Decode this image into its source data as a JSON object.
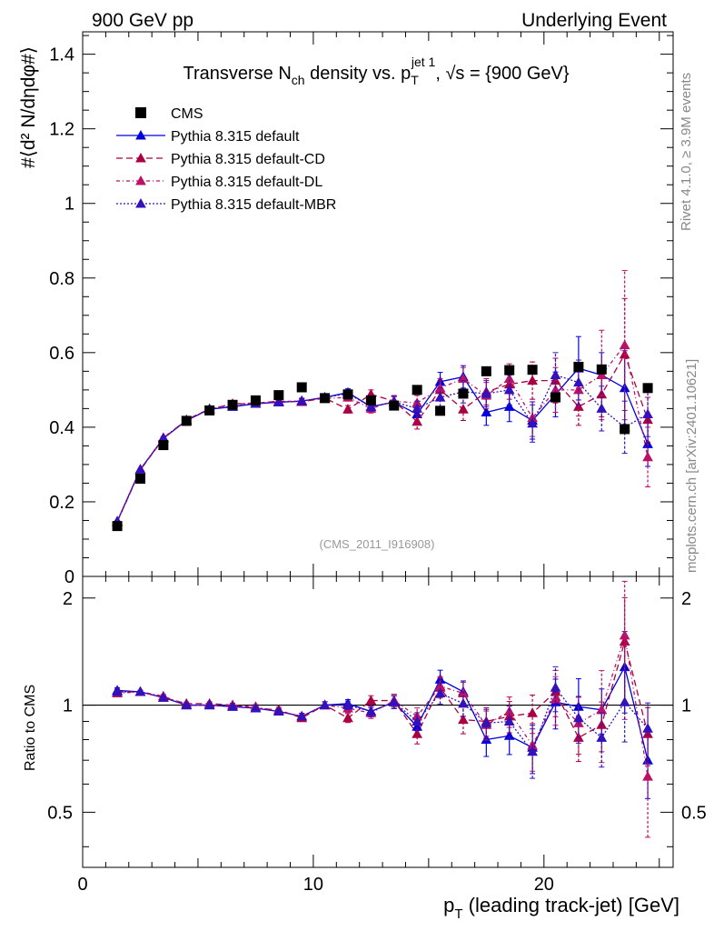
{
  "header": {
    "left": "900 GeV pp",
    "right": "Underlying Event"
  },
  "side_labels": {
    "rivet": "Rivet 4.1.0, ≥ 3.9M events",
    "mcplots": "mcplots.cern.ch [arXiv:2401.10621]"
  },
  "chart_data": {
    "type": "line",
    "title": "Transverse N_ch density vs. p_T^{jet 1}, √s = {900 GeV}",
    "title_parts": {
      "a": "Transverse N",
      "a_sub": "ch",
      "b": " density vs. p",
      "b_sub": "T",
      "b_sup": "jet 1",
      "c": ", √s = {900 GeV}"
    },
    "analysis_id": "(CMS_2011_I916908)",
    "ylabel": "#⟨d² N/dηdφ#⟩",
    "ratio_ylabel": "Ratio to CMS",
    "xlabel": "p_T (leading track-jet) [GeV]",
    "xlabel_parts": {
      "main": "p",
      "sub": "T",
      "rest": " (leading track-jet) [GeV]"
    },
    "xlim": [
      0,
      25.6
    ],
    "ylim": [
      0,
      1.46
    ],
    "ratio_ylim": [
      0.35,
      2.3
    ],
    "x_ticks": [
      0,
      10,
      20
    ],
    "y_ticks": [
      0,
      0.2,
      0.4,
      0.6,
      0.8,
      1,
      1.2,
      1.4
    ],
    "y_tick_labels": [
      "0",
      "0.2",
      "0.4",
      "0.6",
      "0.8",
      "1",
      "1.2",
      "1.4"
    ],
    "ratio_ticks": [
      0.5,
      1,
      2
    ],
    "ratio_tick_labels": [
      "0.5",
      "1",
      "2"
    ],
    "x_tick_labels": [
      "0",
      "10",
      "20"
    ],
    "x": [
      1.5,
      2.5,
      3.5,
      4.5,
      5.5,
      6.5,
      7.5,
      8.5,
      9.5,
      10.5,
      11.5,
      12.5,
      13.5,
      14.5,
      15.5,
      16.5,
      17.5,
      18.5,
      19.5,
      20.5,
      21.5,
      22.5,
      23.5,
      24.5
    ],
    "data": {
      "name": "CMS",
      "values": [
        0.135,
        0.262,
        0.352,
        0.417,
        0.445,
        0.46,
        0.472,
        0.486,
        0.507,
        0.478,
        0.488,
        0.472,
        0.458,
        0.5,
        0.444,
        0.49,
        0.55,
        0.553,
        0.554,
        0.48,
        0.562,
        0.555,
        0.395,
        0.505
      ]
    },
    "series": [
      {
        "name": "Pythia 8.315 default",
        "color": "#0000dd",
        "dash": "",
        "values": [
          0.148,
          0.287,
          0.37,
          0.418,
          0.448,
          0.455,
          0.463,
          0.467,
          0.47,
          0.48,
          0.493,
          0.455,
          0.467,
          0.435,
          0.522,
          0.535,
          0.44,
          0.455,
          0.418,
          0.488,
          0.558,
          0.54,
          0.505,
          0.355
        ],
        "errors": [
          0.002,
          0.002,
          0.003,
          0.003,
          0.004,
          0.004,
          0.005,
          0.006,
          0.007,
          0.008,
          0.01,
          0.012,
          0.015,
          0.02,
          0.025,
          0.03,
          0.035,
          0.04,
          0.05,
          0.06,
          0.085,
          0.06,
          0.1,
          0.06
        ],
        "ratio": [
          1.1,
          1.09,
          1.05,
          1.0,
          1.0,
          0.99,
          0.98,
          0.96,
          0.93,
          1.0,
          1.01,
          0.96,
          1.02,
          0.87,
          1.18,
          1.09,
          0.8,
          0.82,
          0.76,
          1.02,
          0.99,
          0.97,
          1.28,
          0.7
        ]
      },
      {
        "name": "Pythia 8.315 default-CD",
        "color": "#aa0044",
        "dash": "7,4",
        "values": [
          0.147,
          0.285,
          0.37,
          0.42,
          0.449,
          0.462,
          0.464,
          0.47,
          0.468,
          0.478,
          0.448,
          0.488,
          0.47,
          0.415,
          0.5,
          0.448,
          0.495,
          0.515,
          0.525,
          0.525,
          0.455,
          0.488,
          0.595,
          0.42
        ],
        "errors": [
          0.002,
          0.002,
          0.003,
          0.003,
          0.004,
          0.004,
          0.005,
          0.006,
          0.007,
          0.008,
          0.01,
          0.012,
          0.015,
          0.02,
          0.025,
          0.03,
          0.035,
          0.04,
          0.05,
          0.06,
          0.05,
          0.06,
          0.15,
          0.06
        ],
        "ratio": [
          1.09,
          1.09,
          1.05,
          1.01,
          1.01,
          1.0,
          0.98,
          0.97,
          0.92,
          1.0,
          0.92,
          1.03,
          1.03,
          0.83,
          1.12,
          0.91,
          0.9,
          0.93,
          0.95,
          1.09,
          0.81,
          0.88,
          1.51,
          0.83
        ]
      },
      {
        "name": "Pythia 8.315 default-DL",
        "color": "#bb1166",
        "dash": "4,3,1,3",
        "values": [
          0.146,
          0.286,
          0.372,
          0.419,
          0.448,
          0.463,
          0.465,
          0.468,
          0.471,
          0.477,
          0.48,
          0.45,
          0.47,
          0.465,
          0.505,
          0.53,
          0.485,
          0.53,
          0.425,
          0.5,
          0.5,
          0.54,
          0.62,
          0.32
        ],
        "errors": [
          0.002,
          0.002,
          0.003,
          0.003,
          0.004,
          0.004,
          0.005,
          0.006,
          0.007,
          0.008,
          0.01,
          0.012,
          0.015,
          0.02,
          0.025,
          0.03,
          0.035,
          0.04,
          0.05,
          0.06,
          0.07,
          0.12,
          0.2,
          0.08
        ],
        "ratio": [
          1.08,
          1.09,
          1.06,
          1.0,
          1.0,
          1.0,
          0.99,
          0.96,
          0.93,
          1.0,
          0.98,
          0.95,
          1.03,
          0.93,
          1.13,
          1.08,
          0.88,
          0.96,
          0.77,
          1.04,
          0.89,
          0.97,
          1.57,
          0.63
        ]
      },
      {
        "name": "Pythia 8.315 default-MBR",
        "color": "#3311bb",
        "dash": "2,2",
        "values": [
          0.147,
          0.287,
          0.371,
          0.418,
          0.449,
          0.456,
          0.464,
          0.467,
          0.47,
          0.48,
          0.49,
          0.455,
          0.468,
          0.45,
          0.48,
          0.495,
          0.49,
          0.5,
          0.41,
          0.54,
          0.52,
          0.45,
          0.4,
          0.435
        ],
        "errors": [
          0.002,
          0.002,
          0.003,
          0.003,
          0.004,
          0.004,
          0.005,
          0.006,
          0.007,
          0.008,
          0.01,
          0.012,
          0.015,
          0.02,
          0.025,
          0.03,
          0.035,
          0.04,
          0.05,
          0.06,
          0.06,
          0.06,
          0.07,
          0.06
        ],
        "ratio": [
          1.09,
          1.09,
          1.05,
          1.0,
          1.0,
          0.99,
          0.98,
          0.96,
          0.93,
          1.0,
          1.0,
          0.96,
          1.02,
          0.9,
          1.08,
          1.01,
          0.89,
          0.9,
          0.74,
          1.12,
          0.92,
          0.81,
          1.02,
          0.86
        ]
      }
    ],
    "legend_position": "top-left"
  }
}
